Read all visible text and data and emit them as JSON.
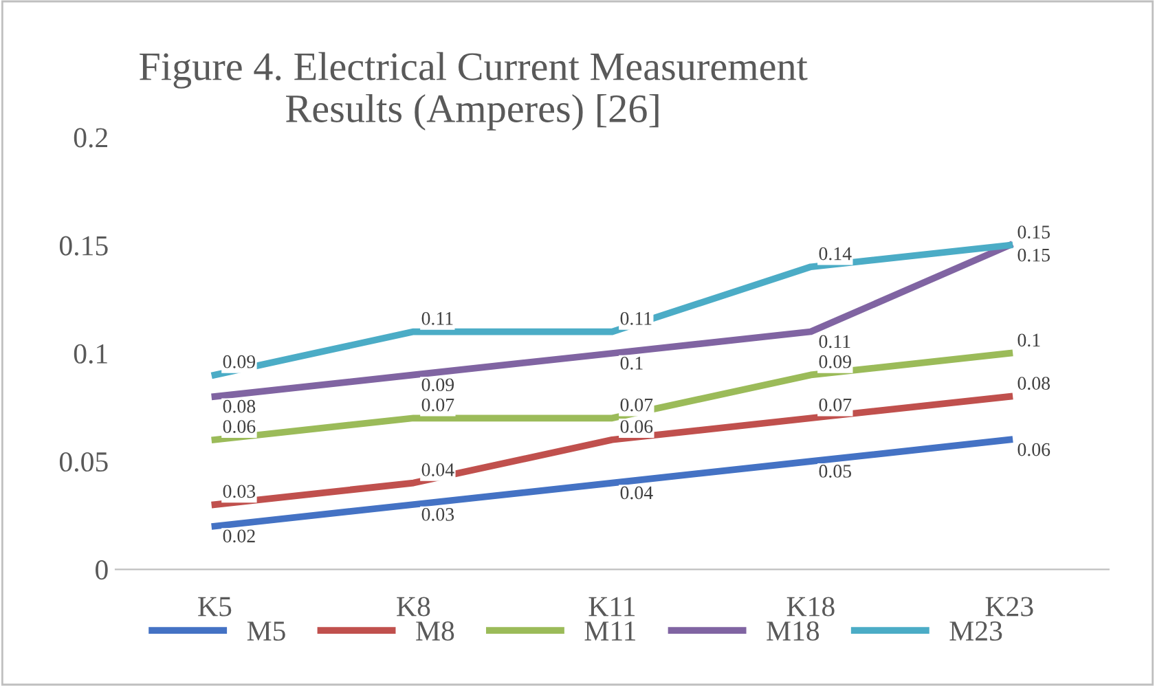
{
  "chart_data": {
    "type": "line",
    "title": "Figure 4. Electrical Current Measurement\nResults (Amperes) [26]",
    "categories": [
      "K5",
      "K8",
      "K11",
      "K18",
      "K23"
    ],
    "series": [
      {
        "name": "M5",
        "color": "#4472c4",
        "values": [
          0.02,
          0.03,
          0.04,
          0.05,
          0.06
        ]
      },
      {
        "name": "M8",
        "color": "#c0504d",
        "values": [
          0.03,
          0.04,
          0.06,
          0.07,
          0.08
        ]
      },
      {
        "name": "M11",
        "color": "#9bbb59",
        "values": [
          0.06,
          0.07,
          0.07,
          0.09,
          0.1
        ]
      },
      {
        "name": "M18",
        "color": "#8064a2",
        "values": [
          0.08,
          0.09,
          0.1,
          0.11,
          0.15
        ]
      },
      {
        "name": "M23",
        "color": "#4bacc6",
        "values": [
          0.09,
          0.11,
          0.11,
          0.14,
          0.15
        ]
      }
    ],
    "ylim": [
      0,
      0.2
    ],
    "yticks": [
      0,
      0.05,
      0.1,
      0.15,
      0.2
    ],
    "data_labels": true,
    "grid": false,
    "legend": "bottom",
    "marker": "none",
    "line_style": "solid"
  }
}
